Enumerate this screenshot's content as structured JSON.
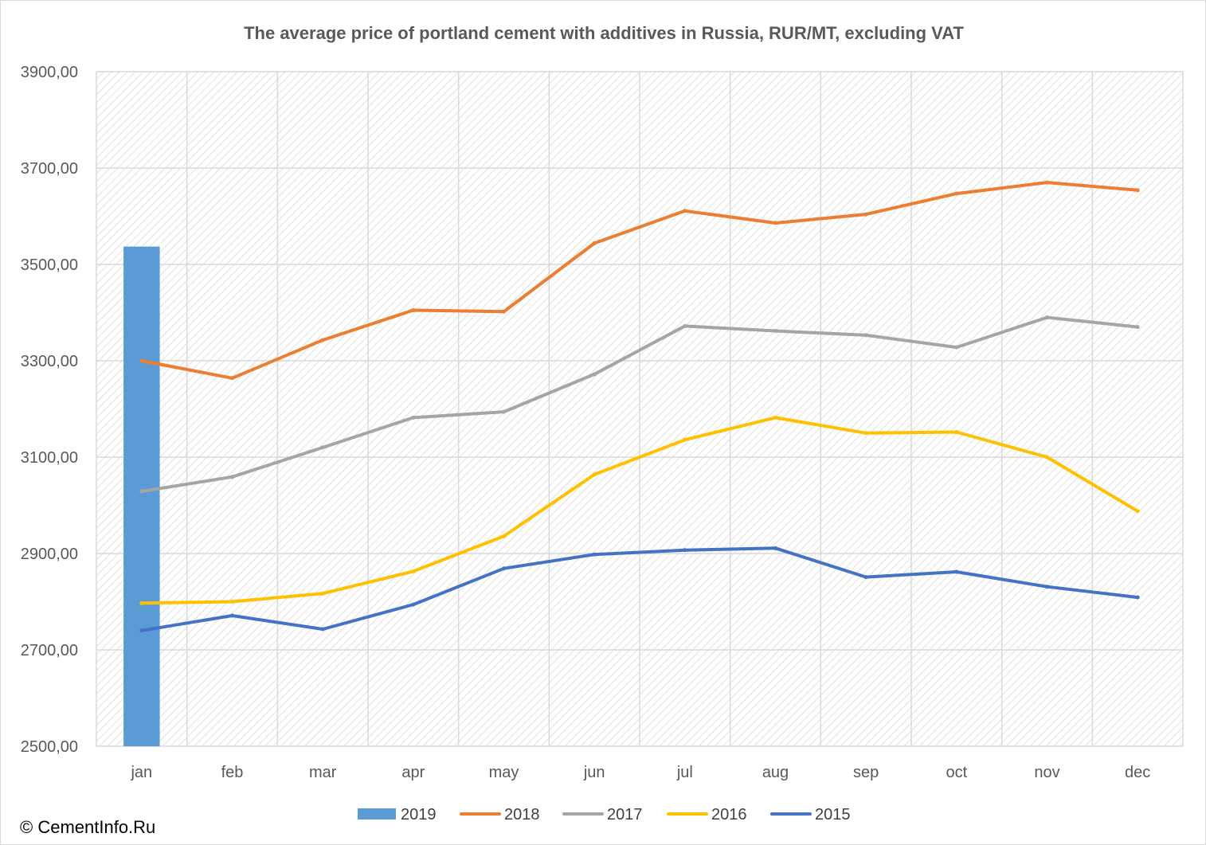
{
  "chart_data": {
    "type": "line",
    "title": "The average price of portland cement with additives in Russia, RUR/MT,  excluding VAT",
    "xlabel": "",
    "ylabel": "",
    "categories": [
      "jan",
      "feb",
      "mar",
      "apr",
      "may",
      "jun",
      "jul",
      "aug",
      "sep",
      "oct",
      "nov",
      "dec"
    ],
    "ylim": [
      2500,
      3900
    ],
    "y_ticks": [
      2500,
      2700,
      2900,
      3100,
      3300,
      3500,
      3700,
      3900
    ],
    "y_tick_labels": [
      "2500,00",
      "2700,00",
      "2900,00",
      "3100,00",
      "3300,00",
      "3500,00",
      "3700,00",
      "3900,00"
    ],
    "grid": true,
    "legend_position": "bottom",
    "series": [
      {
        "name": "2019",
        "kind": "bar",
        "color": "#5b9bd5",
        "values": [
          3537,
          null,
          null,
          null,
          null,
          null,
          null,
          null,
          null,
          null,
          null,
          null
        ]
      },
      {
        "name": "2018",
        "kind": "line",
        "color": "#ed7d31",
        "values": [
          3300,
          3264,
          3343,
          3405,
          3402,
          3544,
          3611,
          3586,
          3604,
          3647,
          3670,
          3654
        ]
      },
      {
        "name": "2017",
        "kind": "line",
        "color": "#a5a5a5",
        "values": [
          3029,
          3059,
          3120,
          3182,
          3194,
          3272,
          3372,
          3362,
          3353,
          3328,
          3390,
          3370
        ]
      },
      {
        "name": "2016",
        "kind": "line",
        "color": "#ffc000",
        "values": [
          2797,
          2800,
          2817,
          2863,
          2936,
          3064,
          3136,
          3182,
          3150,
          3152,
          3100,
          2988
        ]
      },
      {
        "name": "2015",
        "kind": "line",
        "color": "#4472c4",
        "values": [
          2740,
          2771,
          2743,
          2794,
          2869,
          2898,
          2907,
          2911,
          2851,
          2862,
          2831,
          2809
        ]
      }
    ]
  },
  "footer": {
    "copyright": "© CementInfo.Ru"
  }
}
